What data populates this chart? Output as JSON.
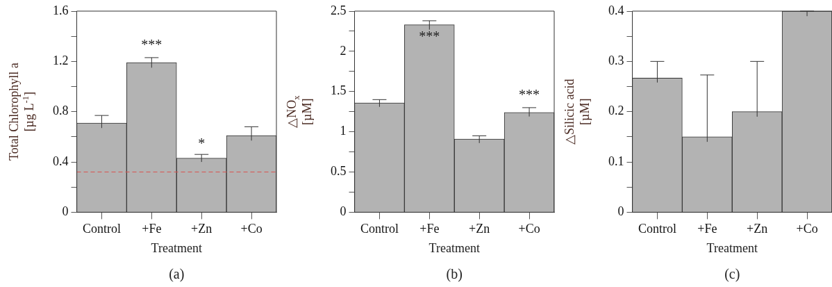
{
  "chart_data": [
    {
      "type": "bar",
      "categories": [
        "Control",
        "+Fe",
        "+Zn",
        "+Co"
      ],
      "values": [
        0.71,
        1.19,
        0.43,
        0.61
      ],
      "color": "#b3b3b3",
      "errors": [
        [
          0.67,
          0.77
        ],
        [
          1.15,
          1.23
        ],
        [
          0.4,
          0.46
        ],
        [
          0.57,
          0.68
        ]
      ],
      "ylim": [
        0,
        1.6
      ],
      "yticks": [
        0,
        {
          "value": 0.2,
          "label": null
        },
        0.4,
        {
          "value": 0.6,
          "label": null
        },
        0.8,
        {
          "value": 1.0,
          "label": null
        },
        1.2,
        {
          "value": 1.4,
          "label": null
        },
        1.6
      ],
      "ylabel": "Total Chlorophyll a\n[µg L$^{-1}$]",
      "xlabel": "Treatment",
      "grid": false,
      "ref_lines": [
        {
          "axis": "y",
          "value": 0.32,
          "color": "#d9534f",
          "line_style": "dashed"
        }
      ],
      "annotations": [
        "***",
        "*",
        "(a)"
      ]
    },
    {
      "type": "bar",
      "categories": [
        "Control",
        "+Fe",
        "+Zn",
        "+Co"
      ],
      "values": [
        1.36,
        2.33,
        0.91,
        1.24
      ],
      "color": "#b3b3b3",
      "errors": [
        [
          1.31,
          1.4
        ],
        [
          2.27,
          2.38
        ],
        [
          0.86,
          0.95
        ],
        [
          1.19,
          1.3
        ]
      ],
      "ylim": [
        0,
        2.5
      ],
      "yticks": [
        0,
        {
          "value": 0.25,
          "label": null
        },
        0.5,
        {
          "value": 0.75,
          "label": null
        },
        1,
        {
          "value": 1.25,
          "label": null
        },
        1.5,
        {
          "value": 1.75,
          "label": null
        },
        2,
        {
          "value": 2.25,
          "label": null
        },
        2.5
      ],
      "ylabel": "△NO$_{x}$\n[µM]",
      "xlabel": "Treatment",
      "grid": false,
      "annotations": [
        "***",
        "***",
        "(b)"
      ]
    },
    {
      "type": "bar",
      "categories": [
        "Control",
        "+Fe",
        "+Zn",
        "+Co"
      ],
      "values": [
        0.267,
        0.15,
        0.2,
        0.4
      ],
      "color": "#b3b3b3",
      "errors": [
        [
          0.258,
          0.3
        ],
        [
          0.14,
          0.273
        ],
        [
          0.19,
          0.3
        ],
        [
          0.39,
          0.4
        ]
      ],
      "ylim": [
        0,
        0.4
      ],
      "yticks": [
        0,
        {
          "value": 0.05,
          "label": null
        },
        0.1,
        {
          "value": 0.15,
          "label": null
        },
        0.2,
        {
          "value": 0.25,
          "label": null
        },
        0.3,
        {
          "value": 0.35,
          "label": null
        },
        0.4
      ],
      "ylabel": "△Silicic acid\n[µM]",
      "xlabel": "Treatment",
      "grid": false,
      "annotations": [
        "(c)"
      ]
    }
  ]
}
